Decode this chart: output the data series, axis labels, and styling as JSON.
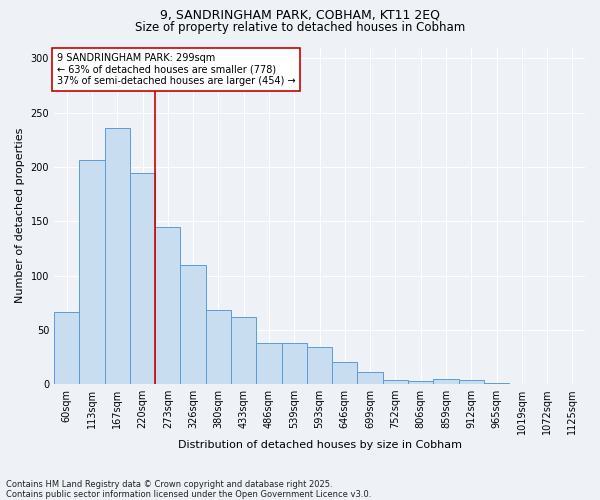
{
  "title1": "9, SANDRINGHAM PARK, COBHAM, KT11 2EQ",
  "title2": "Size of property relative to detached houses in Cobham",
  "xlabel": "Distribution of detached houses by size in Cobham",
  "ylabel": "Number of detached properties",
  "categories": [
    "60sqm",
    "113sqm",
    "167sqm",
    "220sqm",
    "273sqm",
    "326sqm",
    "380sqm",
    "433sqm",
    "486sqm",
    "539sqm",
    "593sqm",
    "646sqm",
    "699sqm",
    "752sqm",
    "806sqm",
    "859sqm",
    "912sqm",
    "965sqm",
    "1019sqm",
    "1072sqm",
    "1125sqm"
  ],
  "values": [
    66,
    206,
    236,
    194,
    145,
    110,
    68,
    62,
    38,
    38,
    34,
    20,
    11,
    4,
    3,
    5,
    4,
    1,
    0,
    0,
    0
  ],
  "bar_color": "#c8ddf0",
  "bar_edge_color": "#5b9bd5",
  "vline_x": 3.5,
  "vline_color": "#cc0000",
  "annotation_text": "9 SANDRINGHAM PARK: 299sqm\n← 63% of detached houses are smaller (778)\n37% of semi-detached houses are larger (454) →",
  "annotation_box_facecolor": "#ffffff",
  "annotation_box_edgecolor": "#cc0000",
  "background_color": "#eef2f7",
  "grid_color": "#ffffff",
  "footer": "Contains HM Land Registry data © Crown copyright and database right 2025.\nContains public sector information licensed under the Open Government Licence v3.0.",
  "ylim": [
    0,
    310
  ],
  "yticks": [
    0,
    50,
    100,
    150,
    200,
    250,
    300
  ],
  "title1_fontsize": 9,
  "title2_fontsize": 8.5,
  "xlabel_fontsize": 8,
  "ylabel_fontsize": 8,
  "tick_fontsize": 7,
  "annot_fontsize": 7,
  "footer_fontsize": 6
}
